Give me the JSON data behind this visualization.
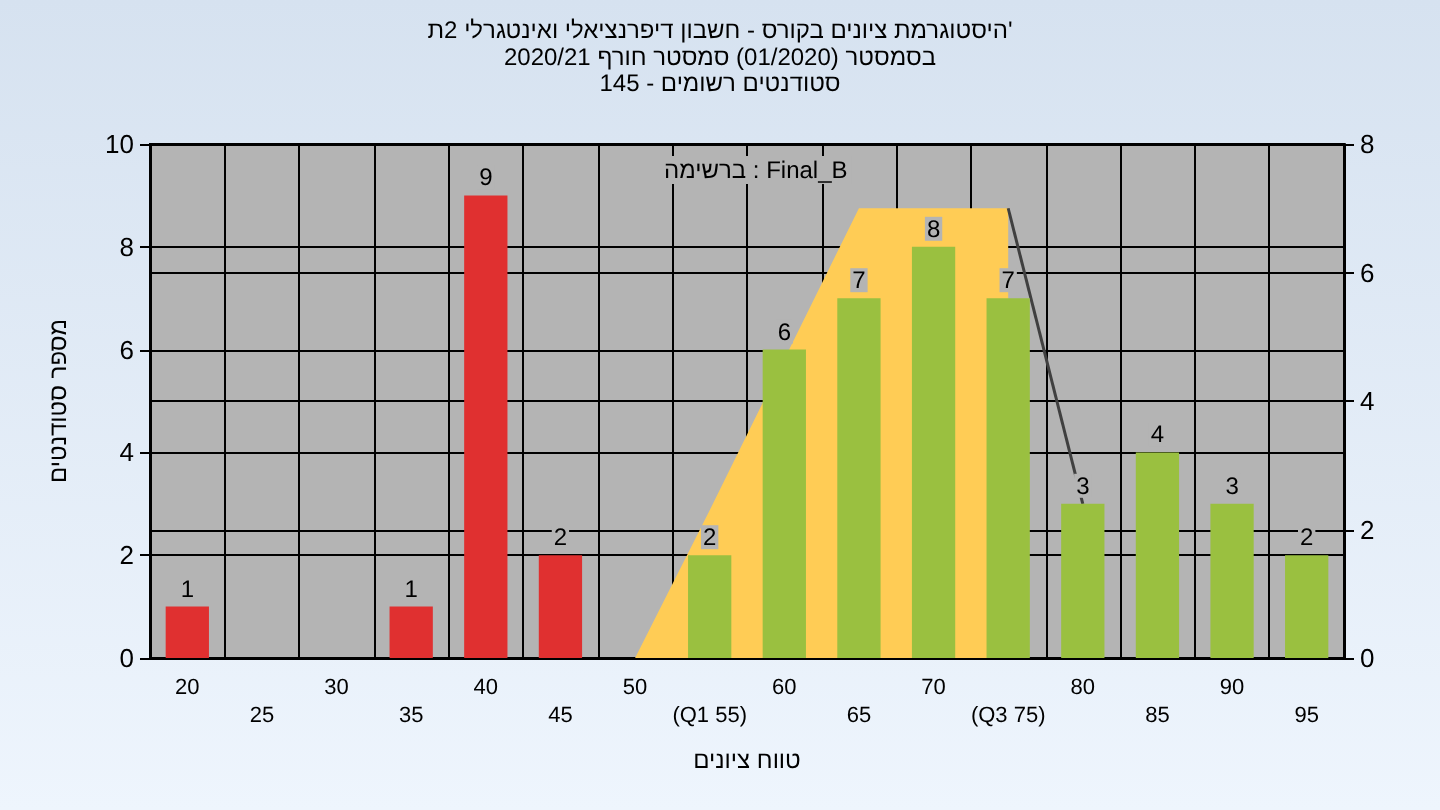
{
  "chart_data": {
    "type": "bar",
    "title": "היסטוגרמת ציונים בקורס - חשבון דיפרנציאלי ואינטגרלי 2ת'",
    "subtitle": "בסמסטר (01/2020) סמסטר חורף 2020/21\nסטודנטים רשומים - 145",
    "xlabel": "טווח ציונים",
    "ylabel": "מספר סטודנטים",
    "categories": [
      "20",
      "25",
      "30",
      "35",
      "40",
      "45",
      "50",
      "(Q1 55)",
      "60",
      "65",
      "70",
      "(Q3 75)",
      "80",
      "85",
      "90",
      "95"
    ],
    "series": [
      {
        "type": "area",
        "axis": "y2",
        "color": "#ffcc55",
        "values": [
          null,
          null,
          null,
          null,
          null,
          null,
          0,
          2.3,
          null,
          7,
          7,
          7,
          null,
          null,
          null,
          null
        ]
      },
      {
        "type": "line",
        "axis": "y2",
        "color": "#404040",
        "values": [
          null,
          null,
          null,
          null,
          null,
          null,
          null,
          null,
          null,
          null,
          null,
          7,
          2.4,
          null,
          null,
          null
        ]
      },
      {
        "values": [
          1,
          null,
          null,
          1,
          9,
          2,
          null,
          2,
          6,
          7,
          8,
          7,
          3,
          4,
          3,
          2
        ],
        "value_labels": [
          "1",
          null,
          null,
          "1",
          "9",
          "2",
          null,
          "2",
          "6",
          "7",
          "8",
          "7",
          "3",
          "4",
          "3",
          "2"
        ],
        "colors": [
          "#e03030",
          null,
          null,
          "#e03030",
          "#e03030",
          "#e03030",
          null,
          "#9ac040",
          "#9ac040",
          "#9ac040",
          "#9ac040",
          "#9ac040",
          "#9ac040",
          "#9ac040",
          "#9ac040",
          "#9ac040"
        ]
      }
    ],
    "ylim": [
      0,
      10
    ],
    "yticks": [
      0,
      2,
      4,
      6,
      8,
      10
    ],
    "y2lim": [
      0,
      8
    ],
    "y2ticks": [
      0,
      2,
      4,
      6,
      8
    ],
    "grid": true,
    "marker": "none",
    "annotations": [
      "ברשימה : Final_B"
    ]
  }
}
